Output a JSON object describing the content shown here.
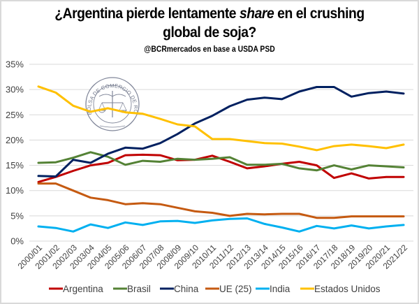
{
  "header": {
    "title_line1_pre": "¿Argentina pierde lentamente ",
    "title_line1_em": "share",
    "title_line1_post": " en el crushing",
    "title_line2": "global de soja?",
    "subtitle": "@BCRmercados  en base a USDA PSD"
  },
  "watermark": {
    "icon": "bolsa-comercio-rosario-seal-icon",
    "text": "BOLSA DE COMERCIO DE ROSARIO"
  },
  "chart_data": {
    "type": "line",
    "title": "¿Argentina pierde lentamente share en el crushing global de soja?",
    "subtitle": "@BCRmercados en base a USDA PSD",
    "xlabel": "",
    "ylabel": "",
    "ylim": [
      0,
      35
    ],
    "yticks": [
      0,
      5,
      10,
      15,
      20,
      25,
      30,
      35
    ],
    "ytick_labels": [
      "0%",
      "5%",
      "10%",
      "15%",
      "20%",
      "25%",
      "30%",
      "35%"
    ],
    "grid": true,
    "legend_position": "bottom",
    "categories": [
      "2000/01",
      "2001/02",
      "2002/03",
      "2003/04",
      "2004/05",
      "2005/06",
      "2006/07",
      "2007/08",
      "2008/09",
      "2009/10",
      "2010/11",
      "2011/12",
      "2012/13",
      "2013/14",
      "2014/15",
      "2015/16",
      "2016/17",
      "2017/18",
      "2018/19",
      "2019/20",
      "2020/21",
      "2021/22"
    ],
    "series": [
      {
        "name": "Argentina",
        "color": "#C00000",
        "values": [
          11.7,
          12.7,
          13.9,
          15.0,
          15.5,
          17.0,
          17.1,
          17.0,
          16.0,
          16.1,
          16.9,
          15.7,
          14.4,
          14.8,
          15.3,
          15.7,
          15.0,
          12.5,
          13.4,
          12.4,
          12.7,
          12.7
        ]
      },
      {
        "name": "Brasil",
        "color": "#548235",
        "values": [
          15.5,
          15.6,
          16.5,
          17.6,
          16.7,
          15.1,
          15.9,
          15.7,
          16.3,
          16.1,
          16.3,
          16.6,
          15.1,
          15.1,
          15.3,
          14.4,
          14.0,
          15.0,
          14.2,
          15.0,
          14.8,
          14.6
        ]
      },
      {
        "name": "China",
        "color": "#002060",
        "values": [
          12.9,
          12.8,
          16.1,
          15.5,
          17.3,
          18.5,
          18.3,
          19.4,
          21.2,
          23.3,
          24.8,
          26.7,
          28.0,
          28.4,
          28.1,
          29.6,
          30.5,
          30.5,
          28.6,
          29.3,
          29.6,
          29.2
        ]
      },
      {
        "name": "UE (25)",
        "color": "#C55A11",
        "values": [
          11.4,
          11.4,
          10.0,
          8.6,
          8.1,
          7.3,
          7.5,
          7.3,
          6.6,
          5.9,
          5.6,
          5.0,
          5.4,
          5.3,
          5.4,
          5.4,
          4.6,
          4.6,
          4.9,
          4.9,
          4.9,
          4.9
        ]
      },
      {
        "name": "India",
        "color": "#00B0F0",
        "values": [
          2.9,
          2.6,
          1.9,
          3.3,
          2.6,
          3.7,
          3.2,
          3.9,
          4.0,
          3.6,
          4.1,
          4.4,
          4.5,
          3.4,
          2.7,
          1.9,
          3.0,
          2.5,
          3.1,
          2.5,
          2.9,
          3.2
        ]
      },
      {
        "name": "Estados Unidos",
        "color": "#FFC000",
        "values": [
          30.6,
          29.4,
          26.8,
          25.6,
          26.3,
          25.5,
          25.2,
          24.2,
          23.1,
          22.7,
          20.2,
          20.2,
          19.8,
          19.4,
          19.3,
          18.7,
          18.0,
          18.8,
          19.1,
          18.8,
          18.4,
          19.1
        ]
      }
    ]
  }
}
